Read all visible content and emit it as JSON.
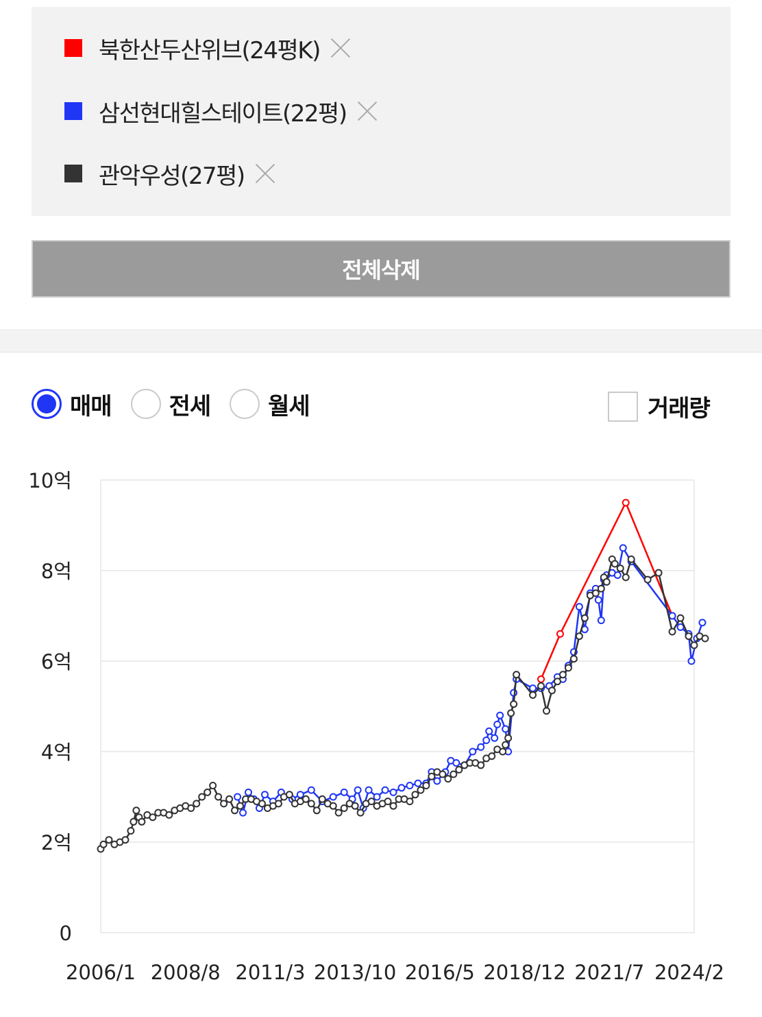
{
  "compare_list": {
    "items": [
      {
        "label": "북한산두산위브(24평K)",
        "color": "#ff0000"
      },
      {
        "label": "삼선현대힐스테이트(22평)",
        "color": "#1f36f5"
      },
      {
        "label": "관악우성(27평)",
        "color": "#333333"
      }
    ],
    "remove_icon": "close-icon"
  },
  "delete_all_label": "전체삭제",
  "trade_type": {
    "options": [
      "매매",
      "전세",
      "월세"
    ],
    "selected": "매매"
  },
  "volume_toggle": {
    "label": "거래량",
    "checked": false
  },
  "chart_data": {
    "type": "line",
    "y_tick_labels": [
      "0",
      "2억",
      "4억",
      "6억",
      "8억",
      "10억"
    ],
    "ylim": [
      0,
      10
    ],
    "y_unit": "억",
    "x_tick_labels": [
      "2006/1",
      "2008/8",
      "2011/3",
      "2013/10",
      "2016/5",
      "2018/12",
      "2021/7",
      "2024/2"
    ],
    "xlim": [
      "2006/1",
      "2024/2"
    ],
    "grid": true,
    "markers": "hollow-circle",
    "series": [
      {
        "name": "북한산두산위브(24평K)",
        "color": "#ff0000",
        "points": [
          [
            "2019/6",
            5.6
          ],
          [
            "2020/1",
            6.6
          ],
          [
            "2022/1",
            9.5
          ],
          [
            "2023/6",
            7.0
          ]
        ]
      },
      {
        "name": "삼선현대힐스테이트(22평)",
        "color": "#1f36f5",
        "points": [
          [
            "2010/3",
            3.0
          ],
          [
            "2010/5",
            2.65
          ],
          [
            "2010/7",
            3.1
          ],
          [
            "2010/9",
            2.95
          ],
          [
            "2010/11",
            2.75
          ],
          [
            "2011/1",
            3.05
          ],
          [
            "2011/4",
            2.9
          ],
          [
            "2011/7",
            3.1
          ],
          [
            "2011/11",
            2.95
          ],
          [
            "2012/2",
            3.05
          ],
          [
            "2012/6",
            3.15
          ],
          [
            "2012/10",
            2.9
          ],
          [
            "2013/2",
            3.0
          ],
          [
            "2013/6",
            3.1
          ],
          [
            "2013/9",
            2.95
          ],
          [
            "2013/11",
            3.15
          ],
          [
            "2014/1",
            2.75
          ],
          [
            "2014/3",
            3.15
          ],
          [
            "2014/6",
            3.0
          ],
          [
            "2014/9",
            3.15
          ],
          [
            "2014/12",
            3.1
          ],
          [
            "2015/3",
            3.2
          ],
          [
            "2015/6",
            3.25
          ],
          [
            "2015/9",
            3.3
          ],
          [
            "2015/12",
            3.3
          ],
          [
            "2016/2",
            3.55
          ],
          [
            "2016/4",
            3.35
          ],
          [
            "2016/7",
            3.55
          ],
          [
            "2016/9",
            3.8
          ],
          [
            "2016/11",
            3.75
          ],
          [
            "2017/2",
            3.7
          ],
          [
            "2017/5",
            4.0
          ],
          [
            "2017/8",
            4.1
          ],
          [
            "2017/10",
            4.25
          ],
          [
            "2017/11",
            4.45
          ],
          [
            "2018/1",
            4.3
          ],
          [
            "2018/2",
            4.6
          ],
          [
            "2018/3",
            4.8
          ],
          [
            "2018/5",
            4.5
          ],
          [
            "2018/6",
            4.0
          ],
          [
            "2018/8",
            5.3
          ],
          [
            "2018/9",
            5.6
          ],
          [
            "2019/3",
            5.4
          ],
          [
            "2019/6",
            5.4
          ],
          [
            "2019/9",
            5.45
          ],
          [
            "2019/12",
            5.65
          ],
          [
            "2020/2",
            5.6
          ],
          [
            "2020/4",
            5.9
          ],
          [
            "2020/6",
            6.2
          ],
          [
            "2020/8",
            7.2
          ],
          [
            "2020/10",
            6.7
          ],
          [
            "2020/12",
            7.5
          ],
          [
            "2021/2",
            7.6
          ],
          [
            "2021/3",
            7.35
          ],
          [
            "2021/4",
            6.9
          ],
          [
            "2021/5",
            7.8
          ],
          [
            "2021/6",
            7.9
          ],
          [
            "2021/8",
            7.95
          ],
          [
            "2021/10",
            7.9
          ],
          [
            "2021/12",
            8.5
          ],
          [
            "2022/3",
            8.2
          ],
          [
            "2023/6",
            7.0
          ],
          [
            "2023/9",
            6.75
          ],
          [
            "2023/12",
            6.6
          ],
          [
            "2024/1",
            6.0
          ],
          [
            "2024/3",
            6.5
          ],
          [
            "2024/5",
            6.85
          ]
        ]
      },
      {
        "name": "관악우성(27평)",
        "color": "#333333",
        "points": [
          [
            "2006/1",
            1.85
          ],
          [
            "2006/2",
            1.95
          ],
          [
            "2006/4",
            2.05
          ],
          [
            "2006/6",
            1.95
          ],
          [
            "2006/8",
            2.0
          ],
          [
            "2006/10",
            2.05
          ],
          [
            "2006/12",
            2.25
          ],
          [
            "2007/1",
            2.45
          ],
          [
            "2007/2",
            2.7
          ],
          [
            "2007/3",
            2.55
          ],
          [
            "2007/4",
            2.45
          ],
          [
            "2007/6",
            2.6
          ],
          [
            "2007/8",
            2.55
          ],
          [
            "2007/10",
            2.65
          ],
          [
            "2007/12",
            2.65
          ],
          [
            "2008/2",
            2.6
          ],
          [
            "2008/4",
            2.7
          ],
          [
            "2008/6",
            2.75
          ],
          [
            "2008/8",
            2.8
          ],
          [
            "2008/10",
            2.75
          ],
          [
            "2008/12",
            2.85
          ],
          [
            "2009/2",
            3.0
          ],
          [
            "2009/4",
            3.1
          ],
          [
            "2009/6",
            3.25
          ],
          [
            "2009/8",
            3.0
          ],
          [
            "2009/10",
            2.85
          ],
          [
            "2009/12",
            2.95
          ],
          [
            "2010/2",
            2.7
          ],
          [
            "2010/4",
            2.8
          ],
          [
            "2010/6",
            2.95
          ],
          [
            "2010/8",
            2.95
          ],
          [
            "2010/10",
            2.9
          ],
          [
            "2010/12",
            2.85
          ],
          [
            "2011/2",
            2.75
          ],
          [
            "2011/4",
            2.8
          ],
          [
            "2011/6",
            2.85
          ],
          [
            "2011/8",
            3.0
          ],
          [
            "2011/10",
            3.05
          ],
          [
            "2011/12",
            2.85
          ],
          [
            "2012/2",
            2.9
          ],
          [
            "2012/4",
            2.95
          ],
          [
            "2012/6",
            2.85
          ],
          [
            "2012/8",
            2.7
          ],
          [
            "2012/10",
            2.95
          ],
          [
            "2012/12",
            2.85
          ],
          [
            "2013/2",
            2.8
          ],
          [
            "2013/4",
            2.65
          ],
          [
            "2013/6",
            2.75
          ],
          [
            "2013/8",
            2.85
          ],
          [
            "2013/10",
            2.8
          ],
          [
            "2013/12",
            2.65
          ],
          [
            "2014/2",
            2.85
          ],
          [
            "2014/4",
            2.9
          ],
          [
            "2014/6",
            2.8
          ],
          [
            "2014/8",
            2.85
          ],
          [
            "2014/10",
            2.9
          ],
          [
            "2014/12",
            2.8
          ],
          [
            "2015/2",
            2.95
          ],
          [
            "2015/4",
            2.95
          ],
          [
            "2015/6",
            2.9
          ],
          [
            "2015/8",
            3.05
          ],
          [
            "2015/10",
            3.15
          ],
          [
            "2015/12",
            3.25
          ],
          [
            "2016/2",
            3.45
          ],
          [
            "2016/4",
            3.55
          ],
          [
            "2016/6",
            3.5
          ],
          [
            "2016/8",
            3.4
          ],
          [
            "2016/10",
            3.5
          ],
          [
            "2016/12",
            3.6
          ],
          [
            "2017/2",
            3.7
          ],
          [
            "2017/4",
            3.75
          ],
          [
            "2017/6",
            3.75
          ],
          [
            "2017/8",
            3.7
          ],
          [
            "2017/10",
            3.85
          ],
          [
            "2017/12",
            3.9
          ],
          [
            "2018/2",
            4.05
          ],
          [
            "2018/4",
            4.0
          ],
          [
            "2018/5",
            4.15
          ],
          [
            "2018/6",
            4.3
          ],
          [
            "2018/7",
            4.85
          ],
          [
            "2018/8",
            5.05
          ],
          [
            "2018/9",
            5.7
          ],
          [
            "2019/3",
            5.25
          ],
          [
            "2019/6",
            5.45
          ],
          [
            "2019/8",
            4.9
          ],
          [
            "2019/10",
            5.35
          ],
          [
            "2019/12",
            5.55
          ],
          [
            "2020/2",
            5.7
          ],
          [
            "2020/4",
            5.85
          ],
          [
            "2020/6",
            6.05
          ],
          [
            "2020/8",
            6.55
          ],
          [
            "2020/10",
            6.95
          ],
          [
            "2020/12",
            7.45
          ],
          [
            "2021/2",
            7.5
          ],
          [
            "2021/4",
            7.6
          ],
          [
            "2021/5",
            7.85
          ],
          [
            "2021/6",
            7.75
          ],
          [
            "2021/8",
            8.25
          ],
          [
            "2021/9",
            8.15
          ],
          [
            "2021/11",
            8.05
          ],
          [
            "2022/1",
            7.85
          ],
          [
            "2022/3",
            8.25
          ],
          [
            "2022/9",
            7.8
          ],
          [
            "2023/1",
            7.95
          ],
          [
            "2023/6",
            6.65
          ],
          [
            "2023/9",
            6.95
          ],
          [
            "2023/12",
            6.55
          ],
          [
            "2024/2",
            6.35
          ],
          [
            "2024/4",
            6.55
          ],
          [
            "2024/6",
            6.5
          ]
        ]
      }
    ]
  }
}
